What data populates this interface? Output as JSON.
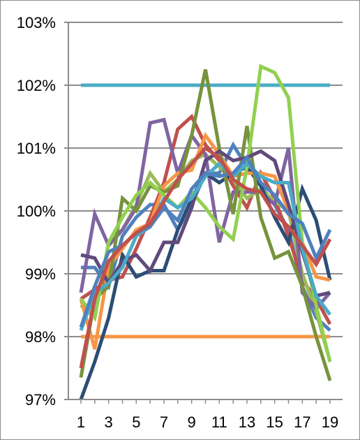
{
  "chart_data": {
    "type": "line",
    "title": "",
    "xlabel": "",
    "ylabel": "",
    "x": [
      1,
      2,
      3,
      4,
      5,
      6,
      7,
      8,
      9,
      10,
      11,
      12,
      13,
      14,
      15,
      16,
      17,
      18,
      19
    ],
    "x_tick_labels": [
      "1",
      "3",
      "5",
      "7",
      "9",
      "11",
      "13",
      "15",
      "17",
      "19"
    ],
    "ylim": [
      97,
      103
    ],
    "y_tick_labels": [
      "97%",
      "98%",
      "99%",
      "100%",
      "101%",
      "102%",
      "103%"
    ],
    "grid": "horizontal",
    "legend": "none",
    "series": [
      {
        "color": "#4bacc6",
        "values": [
          102,
          102,
          102,
          102,
          102,
          102,
          102,
          102,
          102,
          102,
          102,
          102,
          102,
          102,
          102,
          102,
          102,
          102,
          102
        ]
      },
      {
        "color": "#f79646",
        "values": [
          98,
          98,
          98,
          98,
          98,
          98,
          98,
          98,
          98,
          98,
          98,
          98,
          98,
          98,
          98,
          98,
          98,
          98,
          98
        ]
      },
      {
        "color": "#4f81bd",
        "values": [
          99.1,
          99.1,
          98.8,
          99.6,
          99.9,
          100.1,
          100.1,
          99.7,
          100.1,
          100.6,
          100.6,
          101.05,
          100.7,
          100.4,
          100.1,
          99.7,
          98.8,
          98.3,
          98.1
        ]
      },
      {
        "color": "#c0504d",
        "values": [
          98.6,
          98.75,
          98.9,
          98.95,
          99.4,
          99.9,
          100.45,
          101.3,
          101.5,
          101.05,
          100.8,
          100.4,
          100.05,
          100.6,
          100.2,
          99.6,
          98.9,
          98.6,
          98.2
        ]
      },
      {
        "color": "#9bbb59",
        "values": [
          98.5,
          98.3,
          99.5,
          99.7,
          100.1,
          100.6,
          100.3,
          100.5,
          100.8,
          100.9,
          100.7,
          100.5,
          100.2,
          100.35,
          100.15,
          100.0,
          99.0,
          98.4,
          97.6
        ]
      },
      {
        "color": "#8064a2",
        "values": [
          98.7,
          99.95,
          99.45,
          99.7,
          100.05,
          101.4,
          101.45,
          100.6,
          101.2,
          100.9,
          99.5,
          100.3,
          100.3,
          100.3,
          100.1,
          101.0,
          98.7,
          98.45,
          98.7
        ]
      },
      {
        "color": "#2c4d75",
        "values": [
          97.0,
          97.6,
          98.3,
          99.3,
          98.95,
          99.05,
          99.05,
          99.7,
          100.2,
          100.6,
          100.45,
          100.6,
          100.7,
          100.4,
          99.9,
          99.5,
          100.35,
          99.85,
          98.9
        ]
      },
      {
        "color": "#f79646",
        "values": [
          98.6,
          97.8,
          99.1,
          99.4,
          99.7,
          99.8,
          100.4,
          100.6,
          100.65,
          101.2,
          100.9,
          100.55,
          100.6,
          100.6,
          100.55,
          100.0,
          99.5,
          98.95,
          98.9
        ]
      },
      {
        "color": "#77933c",
        "values": [
          97.35,
          98.6,
          98.8,
          100.2,
          100.0,
          100.4,
          100.3,
          100.4,
          101.2,
          102.25,
          101.0,
          99.95,
          101.35,
          99.9,
          99.25,
          99.35,
          98.8,
          98.0,
          97.3
        ]
      },
      {
        "color": "#92d050",
        "values": [
          98.6,
          98.3,
          99.5,
          99.9,
          100.25,
          100.45,
          100.25,
          100.05,
          100.3,
          100.05,
          99.75,
          99.55,
          100.7,
          102.3,
          102.2,
          101.8,
          99.5,
          98.5,
          97.6
        ]
      },
      {
        "color": "#604a7b",
        "values": [
          99.3,
          99.25,
          98.85,
          99.2,
          99.3,
          99.05,
          99.5,
          99.5,
          100.05,
          100.8,
          100.95,
          100.8,
          100.85,
          100.95,
          100.8,
          100.1,
          99.35,
          98.65,
          98.7
        ]
      },
      {
        "color": "#4bacc6",
        "values": [
          98.1,
          98.7,
          98.85,
          99.1,
          99.6,
          99.75,
          100.2,
          100.05,
          100.2,
          100.55,
          100.75,
          100.55,
          100.75,
          100.55,
          100.45,
          100.45,
          99.4,
          98.65,
          98.35
        ]
      },
      {
        "color": "#4f81bd",
        "values": [
          98.15,
          98.8,
          99.35,
          99.45,
          99.65,
          99.75,
          100.05,
          99.85,
          100.35,
          100.6,
          100.55,
          100.6,
          100.85,
          100.45,
          100.25,
          99.95,
          99.8,
          99.25,
          99.7
        ]
      },
      {
        "color": "#c0504d",
        "values": [
          97.5,
          98.6,
          99.2,
          99.45,
          99.65,
          99.8,
          100.15,
          100.5,
          100.75,
          101.0,
          100.85,
          100.5,
          100.35,
          100.3,
          99.95,
          99.75,
          99.45,
          99.15,
          99.55
        ]
      }
    ]
  }
}
